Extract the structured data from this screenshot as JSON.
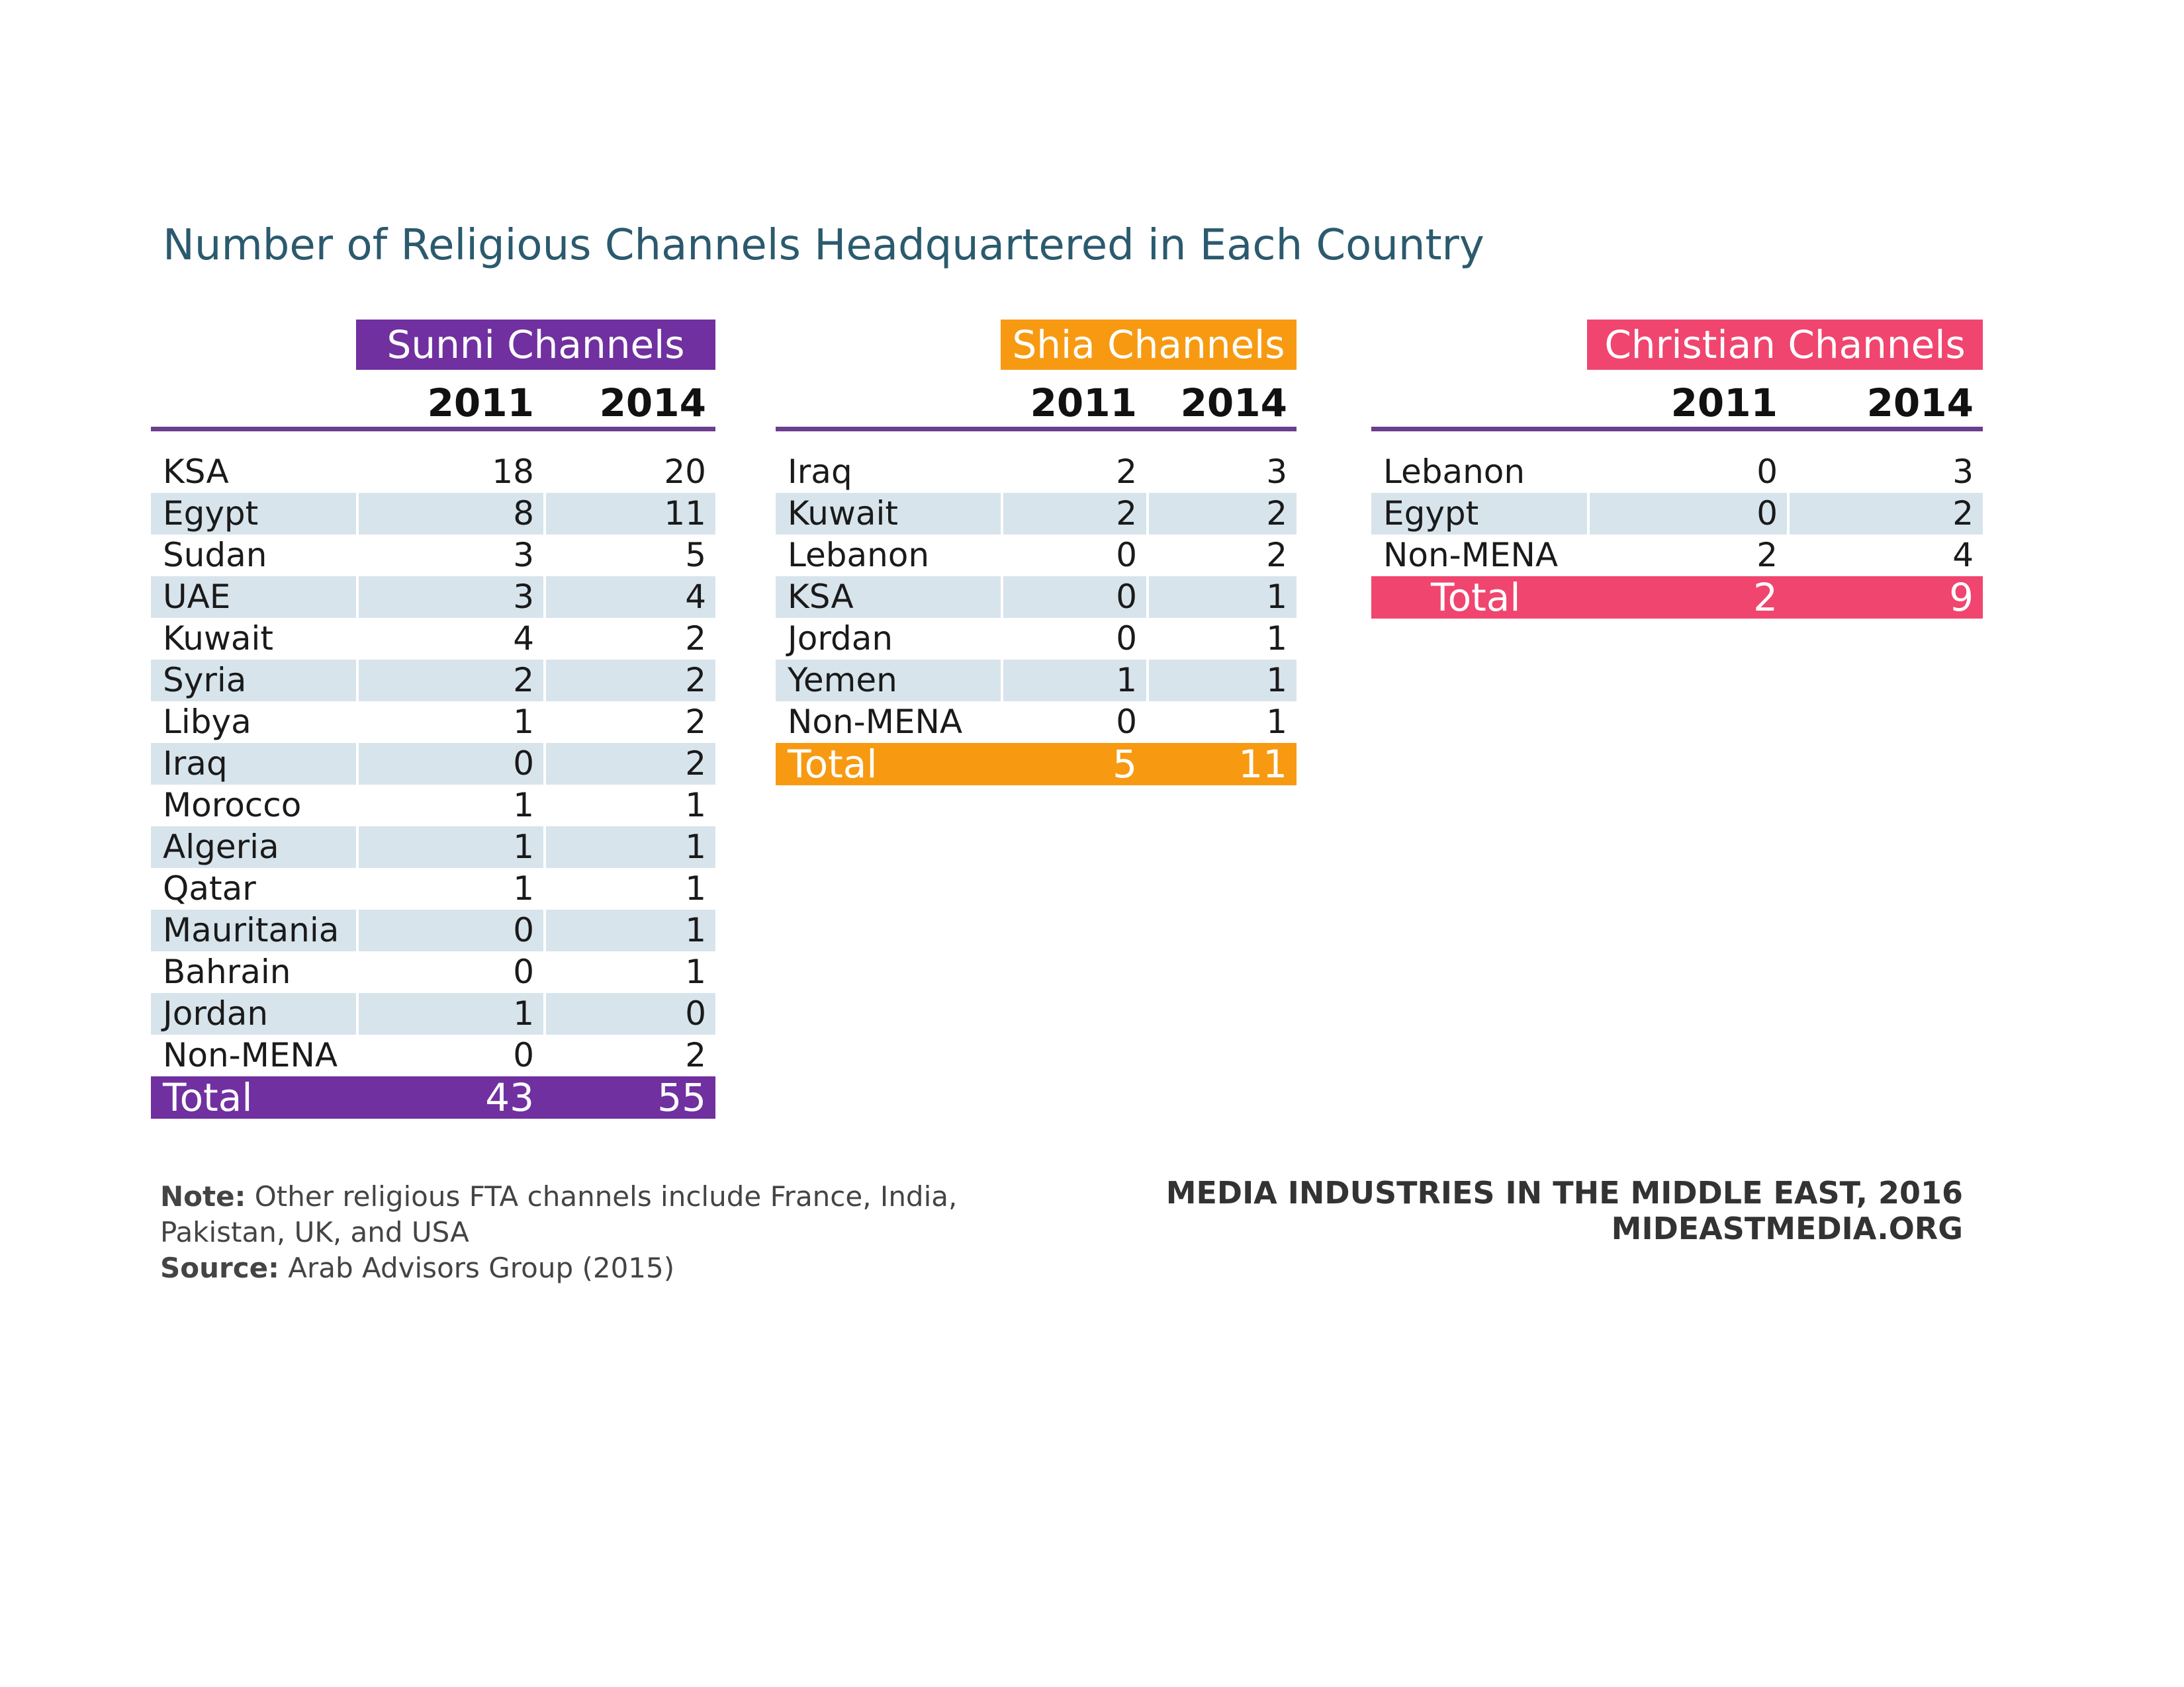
{
  "title": "Number of Religious Channels Headquartered in Each Country",
  "chart_data": {
    "type": "table",
    "title": "Number of Religious Channels Headquartered in Each Country",
    "tables": [
      {
        "key": "sunni",
        "header": "Sunni Channels",
        "color": "#7030a0",
        "years": [
          "2011",
          "2014"
        ],
        "rows": [
          {
            "country": "KSA",
            "y2011": "18",
            "y2014": "20"
          },
          {
            "country": "Egypt",
            "y2011": "8",
            "y2014": "11"
          },
          {
            "country": "Sudan",
            "y2011": "3",
            "y2014": "5"
          },
          {
            "country": "UAE",
            "y2011": "3",
            "y2014": "4"
          },
          {
            "country": "Kuwait",
            "y2011": "4",
            "y2014": "2"
          },
          {
            "country": "Syria",
            "y2011": "2",
            "y2014": "2"
          },
          {
            "country": "Libya",
            "y2011": "1",
            "y2014": "2"
          },
          {
            "country": "Iraq",
            "y2011": "0",
            "y2014": "2"
          },
          {
            "country": "Morocco",
            "y2011": "1",
            "y2014": "1"
          },
          {
            "country": "Algeria",
            "y2011": "1",
            "y2014": "1"
          },
          {
            "country": "Qatar",
            "y2011": "1",
            "y2014": "1"
          },
          {
            "country": "Mauritania",
            "y2011": "0",
            "y2014": "1"
          },
          {
            "country": "Bahrain",
            "y2011": "0",
            "y2014": "1"
          },
          {
            "country": "Jordan",
            "y2011": "1",
            "y2014": "0"
          },
          {
            "country": "Non-MENA",
            "y2011": "0",
            "y2014": "2"
          }
        ],
        "total": {
          "label": "Total",
          "y2011": "43",
          "y2014": "55"
        }
      },
      {
        "key": "shia",
        "header": "Shia Channels",
        "color": "#f79a12",
        "years": [
          "2011",
          "2014"
        ],
        "rows": [
          {
            "country": "Iraq",
            "y2011": "2",
            "y2014": "3"
          },
          {
            "country": "Kuwait",
            "y2011": "2",
            "y2014": "2"
          },
          {
            "country": "Lebanon",
            "y2011": "0",
            "y2014": "2"
          },
          {
            "country": "KSA",
            "y2011": "0",
            "y2014": "1"
          },
          {
            "country": "Jordan",
            "y2011": "0",
            "y2014": "1"
          },
          {
            "country": "Yemen",
            "y2011": "1",
            "y2014": "1"
          },
          {
            "country": "Non-MENA",
            "y2011": "0",
            "y2014": "1"
          }
        ],
        "total": {
          "label": "Total",
          "y2011": "5",
          "y2014": "11"
        }
      },
      {
        "key": "christian",
        "header": "Christian Channels",
        "color": "#f0456f",
        "years": [
          "2011",
          "2014"
        ],
        "rows": [
          {
            "country": "Lebanon",
            "y2011": "0",
            "y2014": "3"
          },
          {
            "country": "Egypt",
            "y2011": "0",
            "y2014": "2"
          },
          {
            "country": "Non-MENA",
            "y2011": "2",
            "y2014": "4"
          }
        ],
        "total": {
          "label": "Total",
          "y2011": "2",
          "y2014": "9"
        }
      }
    ]
  },
  "footnote": {
    "note_label": "Note:",
    "note_text": " Other religious FTA channels include France, India, Pakistan, UK, and USA",
    "source_label": "Source:",
    "source_text": " Arab Advisors Group (2015)"
  },
  "credit": {
    "line1": "MEDIA INDUSTRIES IN THE MIDDLE EAST, 2016",
    "line2": "MIDEASTMEDIA.ORG"
  },
  "colors": {
    "title": "#2b5a6e",
    "shade": "#d8e4ec",
    "rule": "#6a3f8e"
  }
}
